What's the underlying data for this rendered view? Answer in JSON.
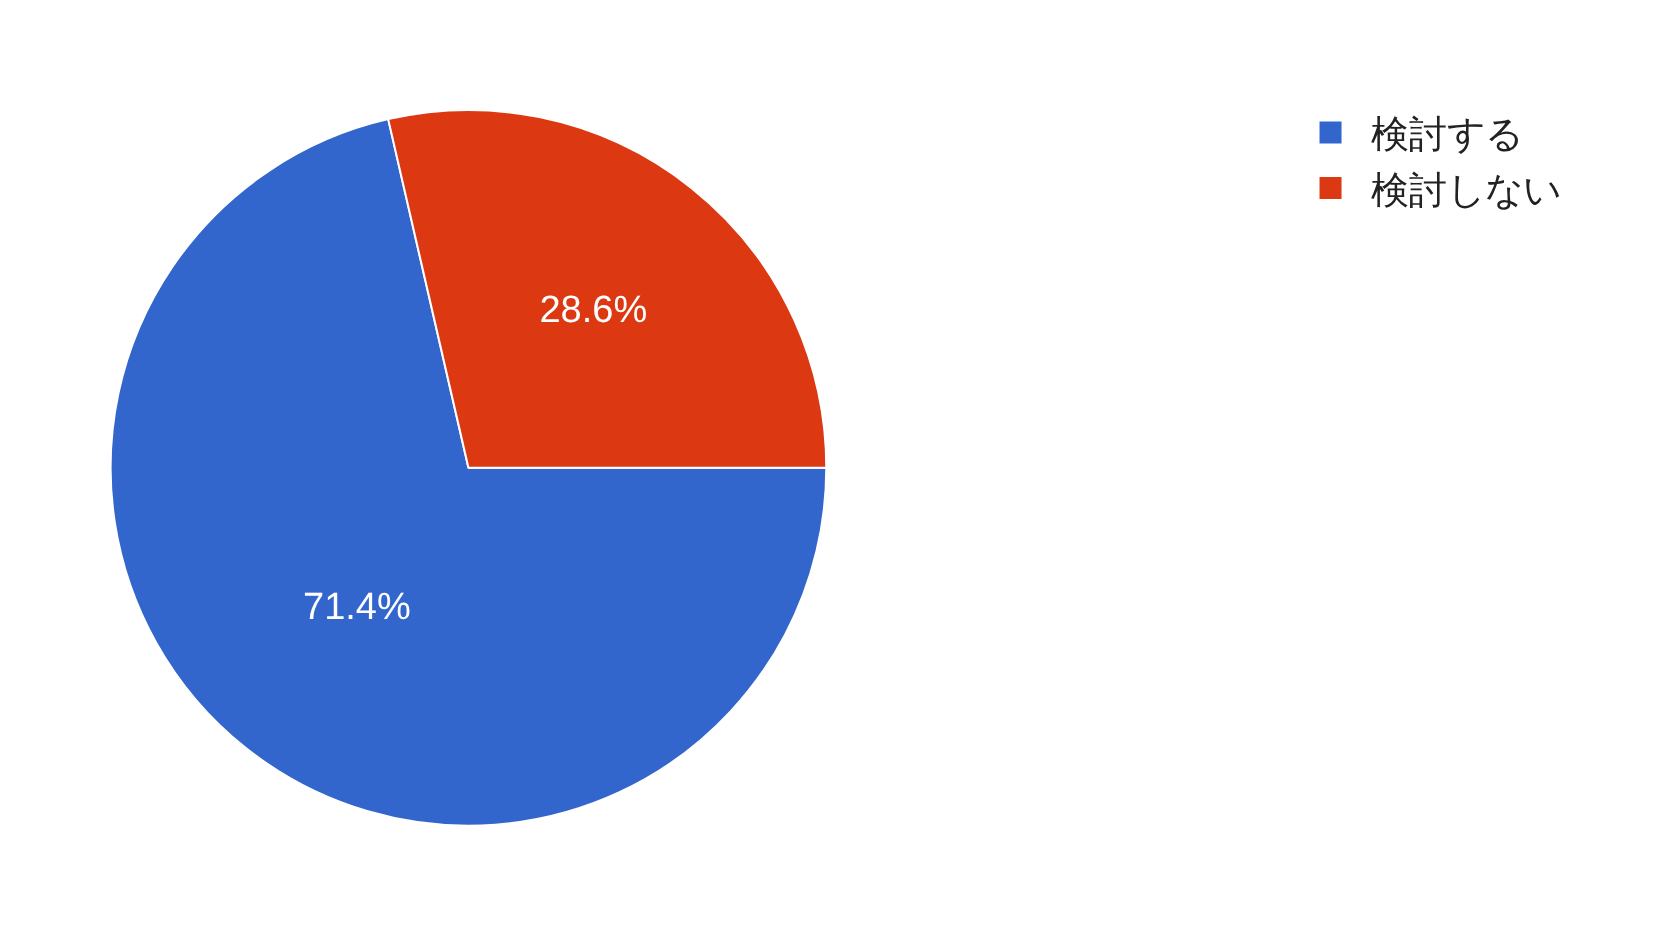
{
  "chart_data": {
    "type": "pie",
    "categories": [
      "検討する",
      "検討しない"
    ],
    "values": [
      71.4,
      28.6
    ],
    "colors": [
      "#3366cc",
      "#dc3912"
    ],
    "value_labels": [
      "71.4%",
      "28.6%"
    ],
    "legend": "top right"
  }
}
